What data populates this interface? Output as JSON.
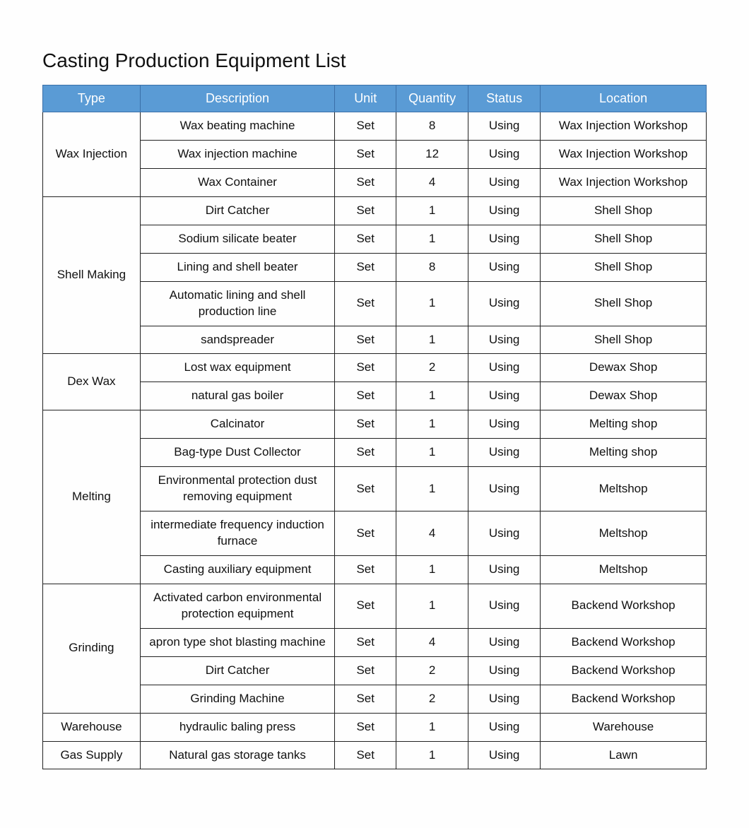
{
  "title": "Casting Production Equipment List",
  "table": {
    "type": "table",
    "header_bg": "#5a9bd5",
    "header_fg": "#ffffff",
    "border_color": "#222222",
    "columns": [
      {
        "label": "Type",
        "width_pct": 13.5
      },
      {
        "label": "Description",
        "width_pct": 27
      },
      {
        "label": "Unit",
        "width_pct": 8.5
      },
      {
        "label": "Quantity",
        "width_pct": 10
      },
      {
        "label": "Status",
        "width_pct": 10
      },
      {
        "label": "Location",
        "width_pct": 23
      }
    ],
    "groups": [
      {
        "type": "Wax Injection",
        "rows": [
          {
            "description": "Wax beating machine",
            "unit": "Set",
            "quantity": "8",
            "status": "Using",
            "location": "Wax Injection Workshop"
          },
          {
            "description": "Wax injection machine",
            "unit": "Set",
            "quantity": "12",
            "status": "Using",
            "location": "Wax Injection Workshop"
          },
          {
            "description": "Wax Container",
            "unit": "Set",
            "quantity": "4",
            "status": "Using",
            "location": "Wax Injection Workshop"
          }
        ]
      },
      {
        "type": "Shell Making",
        "rows": [
          {
            "description": "Dirt Catcher",
            "unit": "Set",
            "quantity": "1",
            "status": "Using",
            "location": "Shell Shop"
          },
          {
            "description": "Sodium silicate beater",
            "unit": "Set",
            "quantity": "1",
            "status": "Using",
            "location": "Shell Shop"
          },
          {
            "description": "Lining and shell beater",
            "unit": "Set",
            "quantity": "8",
            "status": "Using",
            "location": "Shell Shop"
          },
          {
            "description": "Automatic lining and shell production line",
            "unit": "Set",
            "quantity": "1",
            "status": "Using",
            "location": "Shell Shop"
          },
          {
            "description": "sandspreader",
            "unit": "Set",
            "quantity": "1",
            "status": "Using",
            "location": "Shell Shop"
          }
        ]
      },
      {
        "type": "Dex Wax",
        "rows": [
          {
            "description": "Lost wax equipment",
            "unit": "Set",
            "quantity": "2",
            "status": "Using",
            "location": "Dewax Shop"
          },
          {
            "description": "natural gas boiler",
            "unit": "Set",
            "quantity": "1",
            "status": "Using",
            "location": "Dewax Shop"
          }
        ]
      },
      {
        "type": "Melting",
        "rows": [
          {
            "description": "Calcinator",
            "unit": "Set",
            "quantity": "1",
            "status": "Using",
            "location": "Melting shop"
          },
          {
            "description": "Bag-type Dust Collector",
            "unit": "Set",
            "quantity": "1",
            "status": "Using",
            "location": "Melting shop"
          },
          {
            "description": "Environmental protection dust removing equipment",
            "unit": "Set",
            "quantity": "1",
            "status": "Using",
            "location": "Meltshop"
          },
          {
            "description": "intermediate frequency induction furnace",
            "unit": "Set",
            "quantity": "4",
            "status": "Using",
            "location": "Meltshop"
          },
          {
            "description": "Casting auxiliary equipment",
            "unit": "Set",
            "quantity": "1",
            "status": "Using",
            "location": "Meltshop"
          }
        ]
      },
      {
        "type": "Grinding",
        "rows": [
          {
            "description": "Activated carbon environmental protection equipment",
            "unit": "Set",
            "quantity": "1",
            "status": "Using",
            "location": "Backend Workshop"
          },
          {
            "description": "apron type shot blasting machine",
            "unit": "Set",
            "quantity": "4",
            "status": "Using",
            "location": "Backend Workshop"
          },
          {
            "description": "Dirt Catcher",
            "unit": "Set",
            "quantity": "2",
            "status": "Using",
            "location": "Backend Workshop"
          },
          {
            "description": "Grinding Machine",
            "unit": "Set",
            "quantity": "2",
            "status": "Using",
            "location": "Backend Workshop"
          }
        ]
      },
      {
        "type": "Warehouse",
        "rows": [
          {
            "description": "hydraulic baling press",
            "unit": "Set",
            "quantity": "1",
            "status": "Using",
            "location": "Warehouse"
          }
        ]
      },
      {
        "type": "Gas Supply",
        "rows": [
          {
            "description": "Natural gas storage tanks",
            "unit": "Set",
            "quantity": "1",
            "status": "Using",
            "location": "Lawn"
          }
        ]
      }
    ]
  }
}
